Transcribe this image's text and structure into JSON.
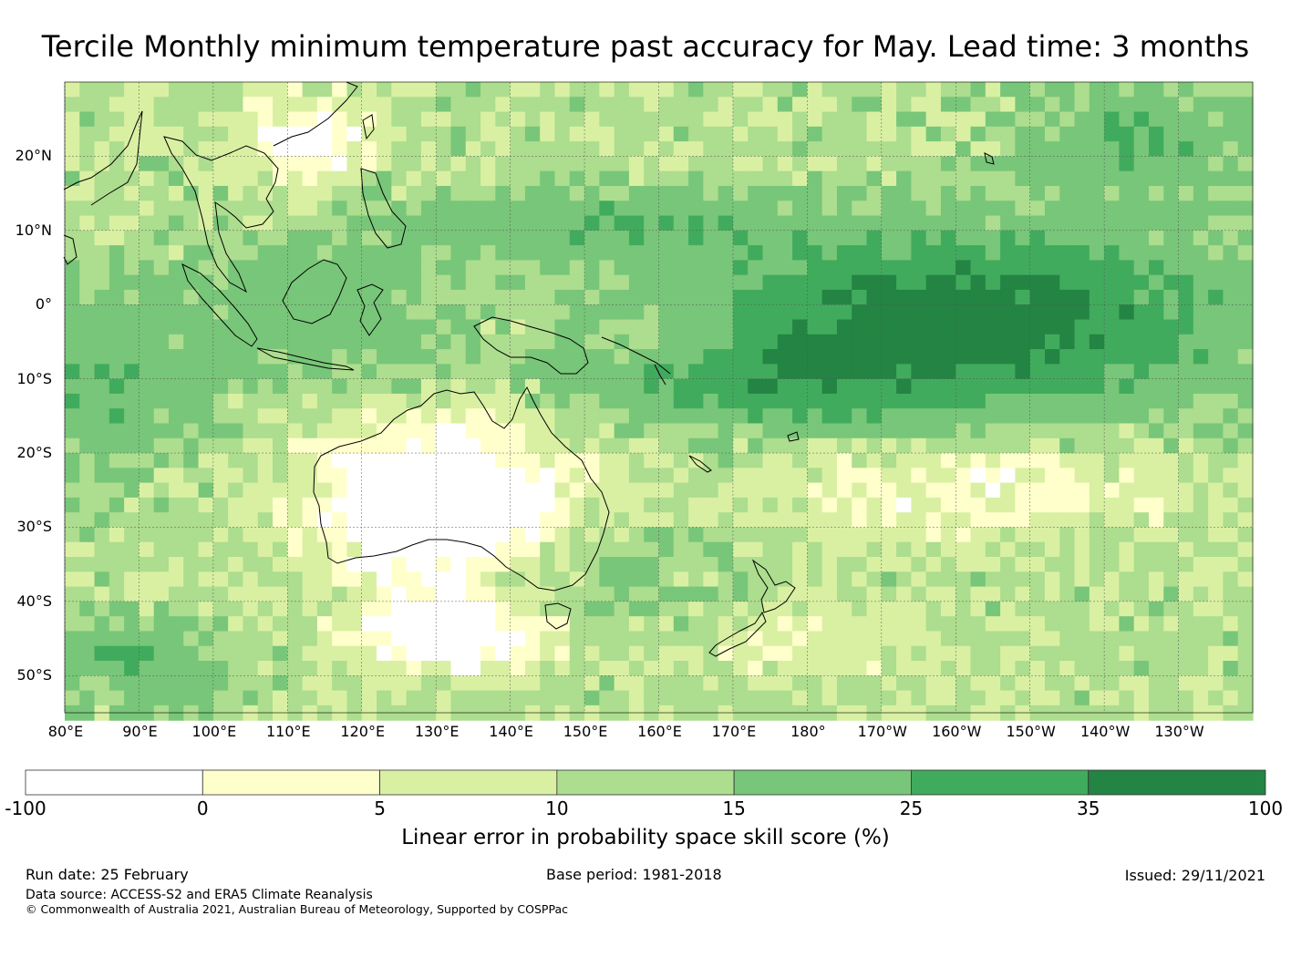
{
  "title": "Tercile Monthly minimum temperature past accuracy for May. Lead time: 3 months",
  "map": {
    "lat_labels": [
      "20°N",
      "10°N",
      "0°",
      "10°S",
      "20°S",
      "30°S",
      "40°S",
      "50°S"
    ],
    "lat_values": [
      20,
      10,
      0,
      -10,
      -20,
      -30,
      -40,
      -50
    ],
    "lon_labels": [
      "80°E",
      "90°E",
      "100°E",
      "110°E",
      "120°E",
      "130°E",
      "140°E",
      "150°E",
      "160°E",
      "170°E",
      "180°",
      "170°W",
      "160°W",
      "150°W",
      "140°W",
      "130°W"
    ],
    "lon_values": [
      80,
      90,
      100,
      110,
      120,
      130,
      140,
      150,
      160,
      170,
      180,
      190,
      200,
      210,
      220,
      230
    ],
    "lat_range": [
      -55,
      30
    ],
    "lon_range": [
      80,
      240
    ]
  },
  "colorbar": {
    "ticks": [
      "-100",
      "0",
      "5",
      "10",
      "15",
      "25",
      "35",
      "100"
    ],
    "colors": [
      "#ffffff",
      "#ffffcc",
      "#d9f0a3",
      "#addd8e",
      "#78c679",
      "#41ab5d",
      "#238443"
    ],
    "title": "Linear error in probability space skill score (%)"
  },
  "footer": {
    "run_date": "Run date: 25 February",
    "base_period": "Base period: 1981-2018",
    "issued": "Issued: 29/11/2021",
    "data_source": "Data source: ACCESS-S2 and ERA5 Climate Reanalysis",
    "copyright": "© Commonwealth of Australia 2021, Australian Bureau of Meteorology, Supported by COSPPac"
  }
}
